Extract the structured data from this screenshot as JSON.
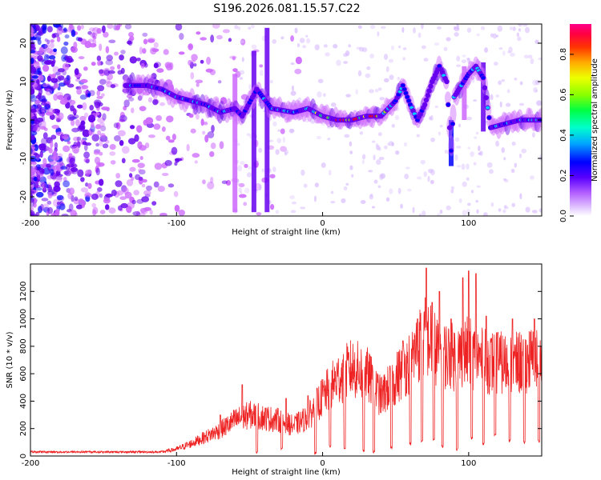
{
  "title": "S196.2026.081.15.57.C22",
  "chart_data": [
    {
      "type": "heatmap",
      "xlabel": "Height of straight line (km)",
      "ylabel": "Frequency (Hz)",
      "xlim": [
        -200,
        150
      ],
      "ylim": [
        -25,
        25
      ],
      "x_ticks": [
        -200,
        -100,
        0,
        100
      ],
      "x_tick_labels": [
        "-200",
        "-100",
        "0",
        "100"
      ],
      "y_ticks": [
        -20,
        -10,
        0,
        10,
        20
      ],
      "y_tick_labels": [
        "-20",
        "-10",
        "0",
        "10",
        "20"
      ],
      "colorbar": {
        "label": "Normalized spectral amplitude",
        "range": [
          0,
          0.95
        ],
        "ticks": [
          0.0,
          0.2,
          0.4,
          0.6,
          0.8
        ],
        "tick_labels": [
          "0.0",
          "0.2",
          "0.4",
          "0.6",
          "0.8"
        ],
        "colors": [
          "#ffffff",
          "#cc66ff",
          "#6600ee",
          "#0000ff",
          "#00ccff",
          "#00ff66",
          "#99ff00",
          "#ffff00",
          "#ff9900",
          "#ff0000",
          "#ff0066"
        ]
      },
      "ridge": [
        {
          "x": -130,
          "y": 9
        },
        {
          "x": -120,
          "y": 9
        },
        {
          "x": -110,
          "y": 8
        },
        {
          "x": -100,
          "y": 6
        },
        {
          "x": -90,
          "y": 5
        },
        {
          "x": -80,
          "y": 4
        },
        {
          "x": -70,
          "y": 2
        },
        {
          "x": -60,
          "y": 3
        },
        {
          "x": -55,
          "y": 1
        },
        {
          "x": -45,
          "y": 8
        },
        {
          "x": -35,
          "y": 3
        },
        {
          "x": -20,
          "y": 2
        },
        {
          "x": -10,
          "y": 3
        },
        {
          "x": 0,
          "y": 1
        },
        {
          "x": 10,
          "y": 0
        },
        {
          "x": 20,
          "y": 0
        },
        {
          "x": 30,
          "y": 1
        },
        {
          "x": 40,
          "y": 1
        },
        {
          "x": 50,
          "y": 5
        },
        {
          "x": 55,
          "y": 9
        },
        {
          "x": 60,
          "y": 4
        },
        {
          "x": 65,
          "y": 0
        },
        {
          "x": 70,
          "y": 4
        },
        {
          "x": 75,
          "y": 10
        },
        {
          "x": 80,
          "y": 14
        },
        {
          "x": 85,
          "y": 10
        },
        {
          "x": 88,
          "y": -8
        },
        {
          "x": 90,
          "y": 6
        },
        {
          "x": 95,
          "y": 9
        },
        {
          "x": 100,
          "y": 12
        },
        {
          "x": 105,
          "y": 14
        },
        {
          "x": 110,
          "y": 11
        },
        {
          "x": 115,
          "y": -2
        },
        {
          "x": 125,
          "y": -1
        },
        {
          "x": 135,
          "y": 0
        },
        {
          "x": 145,
          "y": 0
        },
        {
          "x": 150,
          "y": 0
        }
      ]
    },
    {
      "type": "line",
      "xlabel": "Height of straight line (km)",
      "ylabel": "SNR (10 * v/v)",
      "xlim": [
        -200,
        150
      ],
      "ylim": [
        0,
        1400
      ],
      "x_ticks": [
        -200,
        -100,
        0,
        100
      ],
      "x_tick_labels": [
        "-200",
        "-100",
        "0",
        "100"
      ],
      "y_ticks": [
        0,
        200,
        400,
        600,
        800,
        1000,
        1200
      ],
      "y_tick_labels": [
        "0",
        "200",
        "400",
        "600",
        "800",
        "1000",
        "1200"
      ],
      "color": "#ee2222",
      "envelope": [
        {
          "x": -200,
          "y": 30
        },
        {
          "x": -150,
          "y": 30
        },
        {
          "x": -110,
          "y": 30
        },
        {
          "x": -100,
          "y": 50
        },
        {
          "x": -90,
          "y": 90
        },
        {
          "x": -80,
          "y": 140
        },
        {
          "x": -70,
          "y": 190
        },
        {
          "x": -60,
          "y": 260
        },
        {
          "x": -50,
          "y": 300
        },
        {
          "x": -40,
          "y": 280
        },
        {
          "x": -30,
          "y": 260
        },
        {
          "x": -20,
          "y": 220
        },
        {
          "x": -10,
          "y": 280
        },
        {
          "x": 0,
          "y": 430
        },
        {
          "x": 10,
          "y": 560
        },
        {
          "x": 20,
          "y": 640
        },
        {
          "x": 30,
          "y": 600
        },
        {
          "x": 40,
          "y": 430
        },
        {
          "x": 50,
          "y": 560
        },
        {
          "x": 60,
          "y": 700
        },
        {
          "x": 70,
          "y": 880
        },
        {
          "x": 80,
          "y": 750
        },
        {
          "x": 90,
          "y": 720
        },
        {
          "x": 100,
          "y": 760
        },
        {
          "x": 110,
          "y": 690
        },
        {
          "x": 120,
          "y": 680
        },
        {
          "x": 130,
          "y": 660
        },
        {
          "x": 140,
          "y": 700
        },
        {
          "x": 150,
          "y": 700
        }
      ],
      "peaks": [
        {
          "x": -70,
          "y": 300
        },
        {
          "x": -55,
          "y": 520
        },
        {
          "x": -25,
          "y": 420
        },
        {
          "x": -10,
          "y": 440
        },
        {
          "x": 55,
          "y": 840
        },
        {
          "x": 65,
          "y": 1000
        },
        {
          "x": 68,
          "y": 1230
        },
        {
          "x": 71,
          "y": 1370
        },
        {
          "x": 75,
          "y": 1120
        },
        {
          "x": 80,
          "y": 1200
        },
        {
          "x": 88,
          "y": 1000
        },
        {
          "x": 96,
          "y": 1300
        },
        {
          "x": 100,
          "y": 1350
        },
        {
          "x": 105,
          "y": 1330
        },
        {
          "x": 112,
          "y": 1020
        },
        {
          "x": 120,
          "y": 900
        },
        {
          "x": 130,
          "y": 1000
        },
        {
          "x": 145,
          "y": 1000
        }
      ],
      "dips": [
        {
          "x": -45,
          "y": 20
        },
        {
          "x": -28,
          "y": 40
        },
        {
          "x": -5,
          "y": 10
        },
        {
          "x": 5,
          "y": 60
        },
        {
          "x": 15,
          "y": 50
        },
        {
          "x": 28,
          "y": 30
        },
        {
          "x": 35,
          "y": 20
        },
        {
          "x": 47,
          "y": 50
        },
        {
          "x": 60,
          "y": 80
        },
        {
          "x": 68,
          "y": 100
        },
        {
          "x": 76,
          "y": 110
        },
        {
          "x": 82,
          "y": 60
        },
        {
          "x": 92,
          "y": 40
        },
        {
          "x": 102,
          "y": 120
        },
        {
          "x": 110,
          "y": 80
        },
        {
          "x": 118,
          "y": 140
        },
        {
          "x": 128,
          "y": 100
        },
        {
          "x": 138,
          "y": 90
        },
        {
          "x": 148,
          "y": 100
        }
      ]
    }
  ]
}
